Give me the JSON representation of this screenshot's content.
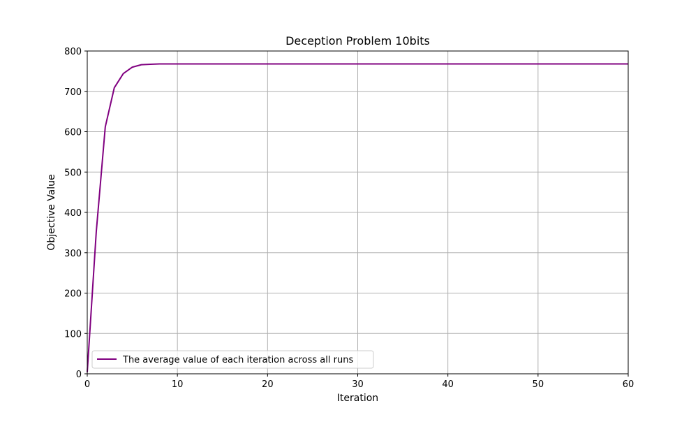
{
  "chart_data": {
    "type": "line",
    "title": "Deception Problem 10bits",
    "xlabel": "Iteration",
    "ylabel": "Objective Value",
    "xlim": [
      0,
      60
    ],
    "ylim": [
      0,
      800
    ],
    "x_ticks": [
      0,
      10,
      20,
      30,
      40,
      50,
      60
    ],
    "y_ticks": [
      0,
      100,
      200,
      300,
      400,
      500,
      600,
      700,
      800
    ],
    "grid": true,
    "legend_position": "lower left",
    "series": [
      {
        "name": "The average value of each iteration across all runs",
        "color": "#800080",
        "x": [
          0,
          1,
          2,
          3,
          4,
          5,
          6,
          7,
          8,
          9,
          10,
          11,
          12,
          13,
          14,
          15,
          16,
          17,
          18,
          19,
          20,
          21,
          22,
          23,
          24,
          25,
          26,
          27,
          28,
          29,
          30,
          31,
          32,
          33,
          34,
          35,
          36,
          37,
          38,
          39,
          40,
          41,
          42,
          43,
          44,
          45,
          46,
          47,
          48,
          49,
          50,
          51,
          52,
          53,
          54,
          55,
          56,
          57,
          58,
          59,
          60
        ],
        "y": [
          4,
          352,
          612,
          709,
          744,
          760,
          766,
          767,
          768,
          768,
          768,
          768,
          768,
          768,
          768,
          768,
          768,
          768,
          768,
          768,
          768,
          768,
          768,
          768,
          768,
          768,
          768,
          768,
          768,
          768,
          768,
          768,
          768,
          768,
          768,
          768,
          768,
          768,
          768,
          768,
          768,
          768,
          768,
          768,
          768,
          768,
          768,
          768,
          768,
          768,
          768,
          768,
          768,
          768,
          768,
          768,
          768,
          768,
          768,
          768,
          768
        ]
      }
    ]
  }
}
